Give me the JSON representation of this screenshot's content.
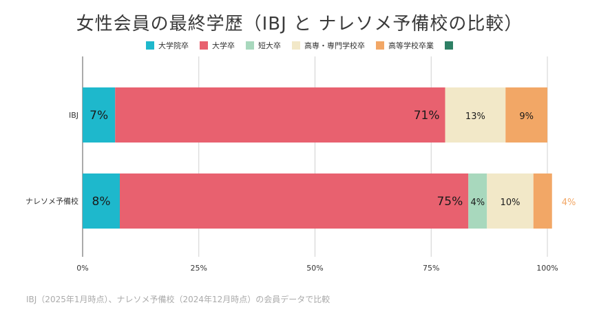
{
  "title": "女性会員の最終学歴（IBJ と ナレソメ予備校の比較）",
  "footnote": "IBJ（2025年1月時点）、ナレソメ予備校（2024年12月時点）の会員データで比較",
  "chart_data": {
    "type": "bar",
    "orientation": "horizontal",
    "stacked": true,
    "categories": [
      "IBJ",
      "ナレソメ予備校"
    ],
    "xlim": [
      0,
      100
    ],
    "xticks": [
      "0%",
      "25%",
      "50%",
      "75%",
      "100%"
    ],
    "grid": true,
    "legend_position": "top",
    "series": [
      {
        "name": "大学院卒",
        "color": "#1eb8cc",
        "values": [
          7,
          8
        ],
        "labels": [
          "7%",
          "8%"
        ]
      },
      {
        "name": "大学卒",
        "color": "#e8616f",
        "values": [
          71,
          75
        ],
        "labels": [
          "71%",
          "75%"
        ]
      },
      {
        "name": "短大卒",
        "color": "#a8d8bd",
        "values": [
          0,
          4
        ],
        "labels": [
          "",
          "4%"
        ]
      },
      {
        "name": "高専・専門学校卒",
        "color": "#f2e8c8",
        "values": [
          13,
          10
        ],
        "labels": [
          "13%",
          "10%"
        ]
      },
      {
        "name": "高等学校卒業",
        "color": "#f2a766",
        "values": [
          9,
          4
        ],
        "labels": [
          "9%",
          "4%"
        ]
      },
      {
        "name": "",
        "color": "#2e8065",
        "values": [
          0,
          0
        ],
        "labels": [
          "",
          ""
        ]
      }
    ]
  }
}
